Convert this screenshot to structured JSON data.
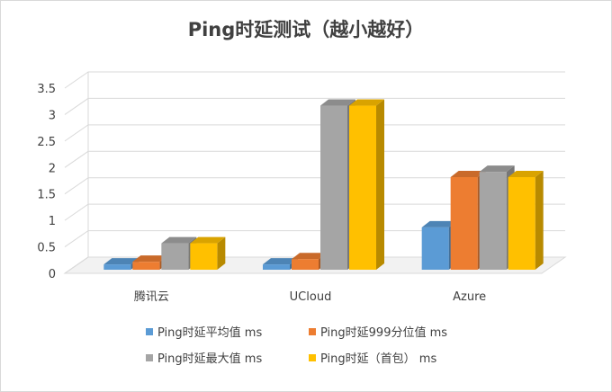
{
  "chart_data": {
    "type": "bar",
    "title": "Ping时延测试（越小越好）",
    "xlabel": "",
    "ylabel": "",
    "ylim": [
      0,
      3.5
    ],
    "yticks": [
      "0",
      "0.5",
      "1",
      "1.5",
      "2",
      "2.5",
      "3",
      "3.5"
    ],
    "grid": true,
    "legend_position": "bottom",
    "categories": [
      "腾讯云",
      "UCloud",
      "Azure"
    ],
    "series": [
      {
        "name": "Ping时延平均值 ms",
        "color": "#5b9bd5",
        "values": [
          0.1,
          0.1,
          0.8
        ]
      },
      {
        "name": "Ping时延999分位值 ms",
        "color": "#ed7d31",
        "values": [
          0.15,
          0.2,
          1.75
        ]
      },
      {
        "name": "Ping时延最大值 ms",
        "color": "#a5a5a5",
        "values": [
          0.5,
          3.1,
          1.85
        ]
      },
      {
        "name": "Ping时延（首包） ms",
        "color": "#ffc000",
        "values": [
          0.5,
          3.1,
          1.75
        ]
      }
    ]
  }
}
